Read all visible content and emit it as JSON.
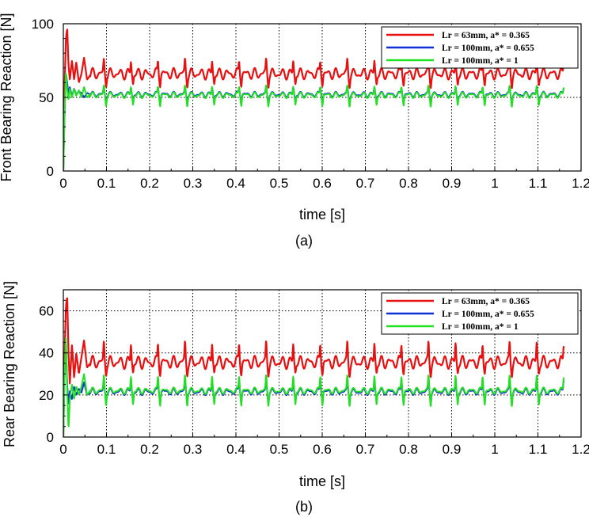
{
  "chart_data": [
    {
      "type": "line",
      "caption": "(a)",
      "xlabel": "time [s]",
      "ylabel": "Front Bearing Reaction [N]",
      "xlim": [
        0,
        1.2
      ],
      "ylim": [
        0,
        100
      ],
      "x_ticks": [
        "0",
        "0.1",
        "0.2",
        "0.3",
        "0.4",
        "0.5",
        "0.6",
        "0.7",
        "0.8",
        "0.9",
        "1",
        "1.1",
        "1.2"
      ],
      "y_ticks": [
        "0",
        "50",
        "100"
      ],
      "x_tick_values": [
        0,
        0.1,
        0.2,
        0.3,
        0.4,
        0.5,
        0.6,
        0.7,
        0.8,
        0.9,
        1.0,
        1.1,
        1.2
      ],
      "y_tick_values": [
        0,
        50,
        100
      ],
      "y_minor_step": 10,
      "grid": "vertical dotted at major x ticks, horizontal at y = 50",
      "legend_position": "top-right",
      "t_end": 1.16,
      "series": [
        {
          "name": "L_r = 63mm, a* = 0.365",
          "legend": "Lr = 63mm, a* = 0.365",
          "color": "#e81010",
          "mean": 66,
          "osc_amp": 2.5,
          "spike_up": 9,
          "spike_down": 6,
          "spike_period": 0.0627,
          "transient": [
            [
              0,
              0
            ],
            [
              0.003,
              58
            ],
            [
              0.006,
              90
            ],
            [
              0.009,
              97
            ],
            [
              0.012,
              72
            ],
            [
              0.015,
              62
            ],
            [
              0.02,
              75
            ],
            [
              0.025,
              62
            ],
            [
              0.03,
              74
            ],
            [
              0.036,
              60
            ],
            [
              0.042,
              66
            ],
            [
              0.048,
              77
            ],
            [
              0.055,
              62
            ],
            [
              0.062,
              65
            ]
          ]
        },
        {
          "name": "L_r = 100mm, a* = 0.655",
          "legend": "Lr = 100mm, a* = 0.655",
          "color": "#1030d8",
          "mean": 52,
          "osc_amp": 1.2,
          "spike_up": 5,
          "spike_down": 5,
          "spike_period": 0.0627,
          "transient": [
            [
              0,
              0
            ],
            [
              0.003,
              40
            ],
            [
              0.006,
              66
            ],
            [
              0.009,
              60
            ],
            [
              0.012,
              52
            ],
            [
              0.015,
              57
            ],
            [
              0.02,
              51
            ],
            [
              0.025,
              56
            ],
            [
              0.03,
              52
            ],
            [
              0.036,
              54
            ],
            [
              0.042,
              53
            ],
            [
              0.048,
              50
            ],
            [
              0.055,
              53
            ],
            [
              0.062,
              52
            ]
          ]
        },
        {
          "name": "L_r = 100mm, a* = 1",
          "legend": "Lr = 100mm, a* = 1",
          "color": "#22e022",
          "mean": 51.5,
          "osc_amp": 1.3,
          "spike_up": 6,
          "spike_down": 6,
          "spike_period": 0.0627,
          "transient": [
            [
              0,
              0
            ],
            [
              0.003,
              40
            ],
            [
              0.006,
              68
            ],
            [
              0.009,
              55
            ],
            [
              0.012,
              48
            ],
            [
              0.015,
              56
            ],
            [
              0.02,
              50
            ],
            [
              0.025,
              56
            ],
            [
              0.03,
              51
            ],
            [
              0.036,
              55
            ],
            [
              0.042,
              50
            ],
            [
              0.048,
              57
            ],
            [
              0.055,
              50
            ],
            [
              0.062,
              52
            ]
          ]
        }
      ]
    },
    {
      "type": "line",
      "caption": "(b)",
      "xlabel": "time [s]",
      "ylabel": "Rear Bearing Reaction [N]",
      "xlim": [
        0,
        1.2
      ],
      "ylim": [
        0,
        70
      ],
      "x_ticks": [
        "0",
        "0.1",
        "0.2",
        "0.3",
        "0.4",
        "0.5",
        "0.6",
        "0.7",
        "0.8",
        "0.9",
        "1",
        "1.1",
        "1.2"
      ],
      "y_ticks": [
        "0",
        "20",
        "40",
        "60"
      ],
      "x_tick_values": [
        0,
        0.1,
        0.2,
        0.3,
        0.4,
        0.5,
        0.6,
        0.7,
        0.8,
        0.9,
        1.0,
        1.1,
        1.2
      ],
      "y_tick_values": [
        0,
        20,
        40,
        60
      ],
      "y_minor_step": 5,
      "grid": "vertical dotted at major x ticks, horizontal at y = 20, 40",
      "legend_position": "top-right",
      "t_end": 1.16,
      "series": [
        {
          "name": "L_r = 63mm, a* = 0.365",
          "legend": "Lr = 63mm, a* = 0.365",
          "color": "#e81010",
          "mean": 35.5,
          "osc_amp": 2.0,
          "spike_up": 9,
          "spike_down": 4,
          "spike_period": 0.0627,
          "transient": [
            [
              0,
              0
            ],
            [
              0.003,
              40
            ],
            [
              0.006,
              62
            ],
            [
              0.009,
              67
            ],
            [
              0.012,
              40
            ],
            [
              0.015,
              25
            ],
            [
              0.02,
              44
            ],
            [
              0.025,
              28
            ],
            [
              0.03,
              40
            ],
            [
              0.036,
              30
            ],
            [
              0.042,
              38
            ],
            [
              0.048,
              46
            ],
            [
              0.055,
              33
            ],
            [
              0.062,
              35
            ]
          ]
        },
        {
          "name": "L_r = 100mm, a* = 0.655",
          "legend": "Lr = 100mm, a* = 0.655",
          "color": "#1030d8",
          "mean": 21.5,
          "osc_amp": 1.0,
          "spike_up": 6,
          "spike_down": 4,
          "spike_period": 0.0627,
          "transient": [
            [
              0,
              0
            ],
            [
              0.003,
              30
            ],
            [
              0.006,
              45
            ],
            [
              0.009,
              25
            ],
            [
              0.012,
              15
            ],
            [
              0.015,
              22
            ],
            [
              0.02,
              18
            ],
            [
              0.025,
              24
            ],
            [
              0.03,
              20
            ],
            [
              0.036,
              23
            ],
            [
              0.042,
              21
            ],
            [
              0.048,
              26
            ],
            [
              0.055,
              20
            ],
            [
              0.062,
              21
            ]
          ]
        },
        {
          "name": "L_r = 100mm, a* = 1",
          "legend": "Lr = 100mm, a* = 1",
          "color": "#22e022",
          "mean": 22,
          "osc_amp": 1.0,
          "spike_up": 7,
          "spike_down": 6,
          "spike_period": 0.0627,
          "transient": [
            [
              0,
              0
            ],
            [
              0.003,
              30
            ],
            [
              0.006,
              48
            ],
            [
              0.009,
              22
            ],
            [
              0.012,
              3
            ],
            [
              0.015,
              18
            ],
            [
              0.02,
              25
            ],
            [
              0.025,
              18
            ],
            [
              0.03,
              24
            ],
            [
              0.036,
              20
            ],
            [
              0.042,
              24
            ],
            [
              0.048,
              30
            ],
            [
              0.055,
              20
            ],
            [
              0.062,
              22
            ]
          ]
        }
      ]
    }
  ]
}
